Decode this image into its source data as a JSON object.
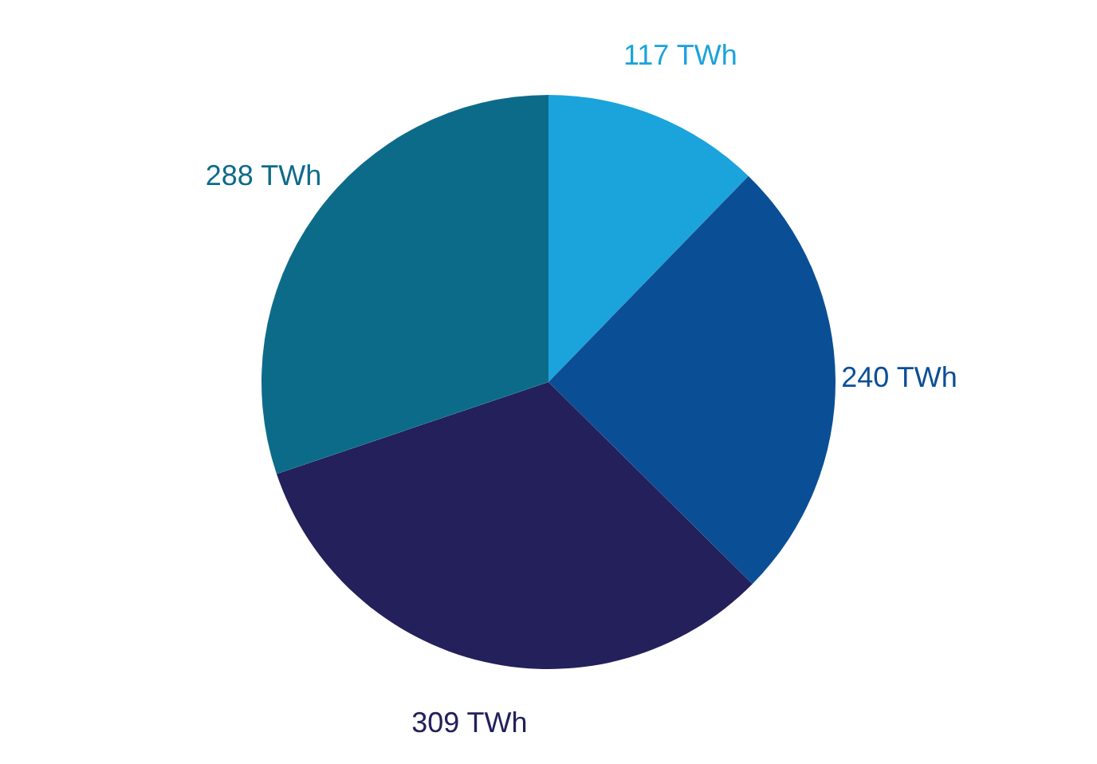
{
  "chart_data": {
    "type": "pie",
    "categories": [
      null,
      null,
      null,
      null
    ],
    "values": [
      117,
      240,
      309,
      288
    ],
    "colors": [
      "#1ba3dc",
      "#0a4f96",
      "#23205b",
      "#0d6b8a"
    ],
    "value_labels": [
      "117 TWh",
      "240 TWh",
      "309 TWh",
      "288 TWh"
    ]
  }
}
